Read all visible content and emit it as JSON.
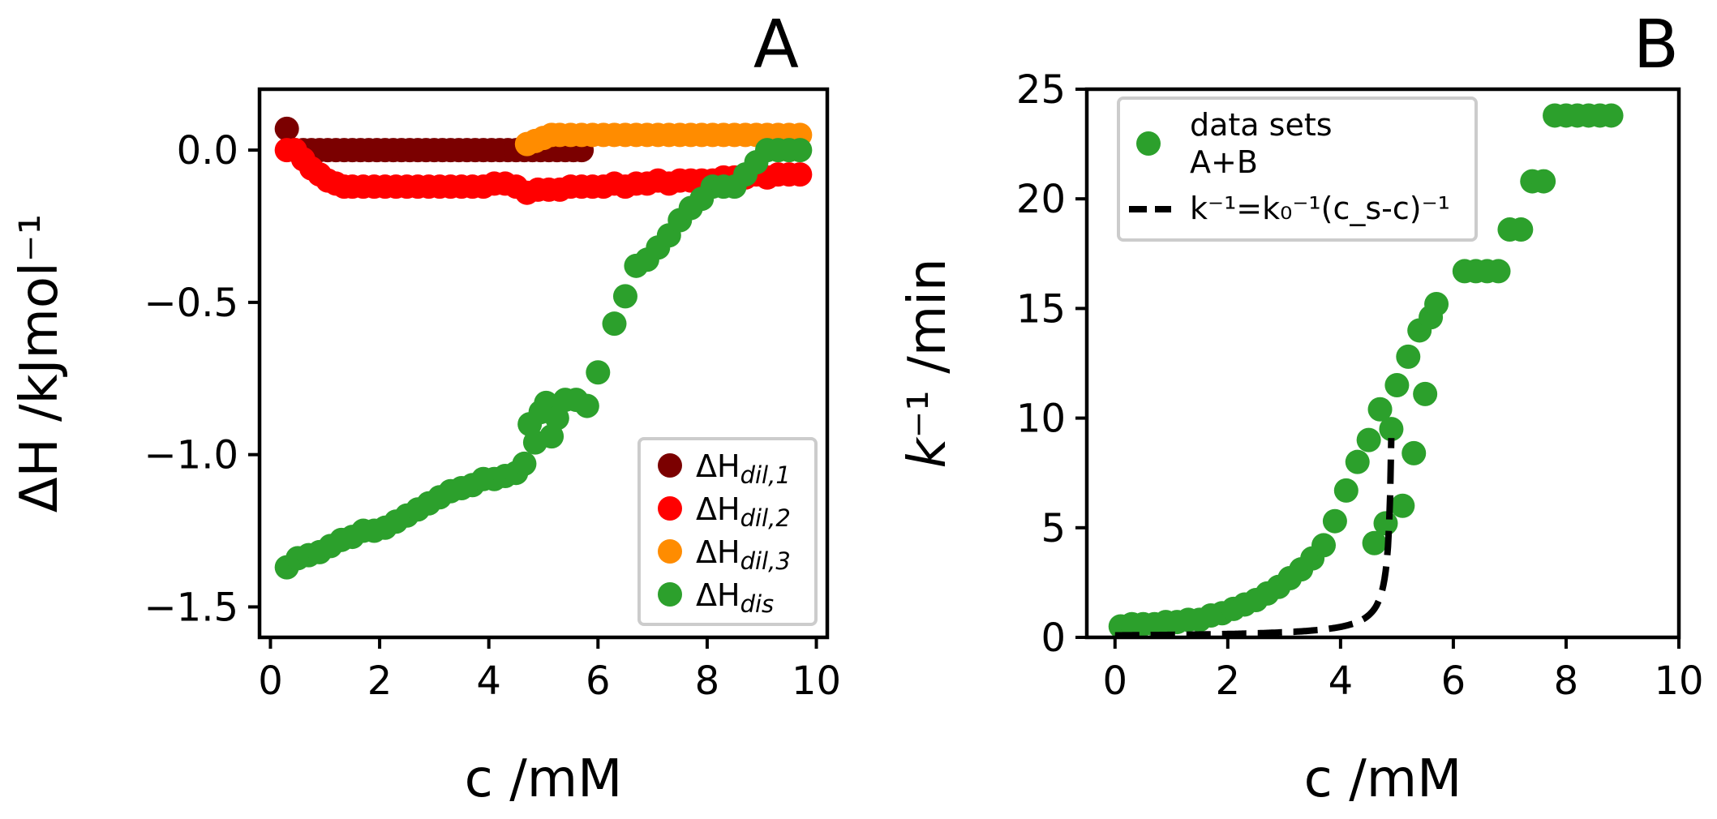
{
  "chart_data": [
    {
      "panel_label": "A",
      "type": "scatter",
      "xlabel": "c /mM",
      "ylabel": "ΔH /kJmol⁻¹",
      "xlim": [
        -0.2,
        10.2
      ],
      "ylim": [
        -1.6,
        0.2
      ],
      "xticks": [
        0,
        2,
        4,
        6,
        8,
        10
      ],
      "yticks": [
        0.0,
        -0.5,
        -1.0,
        -1.5
      ],
      "ytick_labels": [
        "0.0",
        "−0.5",
        "−1.0",
        "−1.5"
      ],
      "grid": false,
      "legend_position": "lower-right",
      "series": [
        {
          "name": "ΔH_dil,1",
          "legend_main": "ΔH",
          "legend_sub": "dil,1",
          "color": "#7b0000",
          "x": [
            0.3,
            0.45,
            0.6,
            0.75,
            0.9,
            1.05,
            1.2,
            1.35,
            1.5,
            1.65,
            1.8,
            1.95,
            2.1,
            2.25,
            2.4,
            2.55,
            2.7,
            2.85,
            3.0,
            3.15,
            3.3,
            3.45,
            3.6,
            3.75,
            3.9,
            4.05,
            4.2,
            4.35,
            4.5,
            4.65,
            4.8,
            4.95,
            5.1,
            5.25,
            5.4,
            5.55,
            5.7
          ],
          "y": [
            0.07,
            0.0,
            0.0,
            0.0,
            0.0,
            0.0,
            0.0,
            0.0,
            0.0,
            0.0,
            0.0,
            0.0,
            0.0,
            0.0,
            0.0,
            0.0,
            0.0,
            0.0,
            0.0,
            0.0,
            0.0,
            0.0,
            0.0,
            0.0,
            0.0,
            0.0,
            0.0,
            0.0,
            0.0,
            0.0,
            0.0,
            0.0,
            0.0,
            0.0,
            0.0,
            0.0,
            0.0
          ]
        },
        {
          "name": "ΔH_dil,2",
          "legend_main": "ΔH",
          "legend_sub": "dil,2",
          "color": "#ff0000",
          "x": [
            0.3,
            0.45,
            0.6,
            0.75,
            0.9,
            1.05,
            1.2,
            1.35,
            1.5,
            1.7,
            1.9,
            2.1,
            2.3,
            2.5,
            2.7,
            2.9,
            3.1,
            3.3,
            3.5,
            3.7,
            3.9,
            4.1,
            4.3,
            4.5,
            4.7,
            4.9,
            5.1,
            5.3,
            5.5,
            5.7,
            5.9,
            6.1,
            6.3,
            6.5,
            6.7,
            6.9,
            7.1,
            7.3,
            7.5,
            7.7,
            7.9,
            8.1,
            8.3,
            8.5,
            8.7,
            8.9,
            9.1,
            9.3,
            9.5,
            9.7
          ],
          "y": [
            0.0,
            0.0,
            -0.03,
            -0.06,
            -0.08,
            -0.1,
            -0.11,
            -0.12,
            -0.12,
            -0.12,
            -0.12,
            -0.12,
            -0.12,
            -0.12,
            -0.12,
            -0.12,
            -0.12,
            -0.12,
            -0.12,
            -0.12,
            -0.12,
            -0.11,
            -0.11,
            -0.12,
            -0.14,
            -0.13,
            -0.13,
            -0.13,
            -0.12,
            -0.12,
            -0.12,
            -0.12,
            -0.11,
            -0.12,
            -0.11,
            -0.11,
            -0.1,
            -0.11,
            -0.1,
            -0.1,
            -0.1,
            -0.1,
            -0.09,
            -0.09,
            -0.09,
            -0.08,
            -0.09,
            -0.08,
            -0.08,
            -0.08
          ]
        },
        {
          "name": "ΔH_dil,3",
          "legend_main": "ΔH",
          "legend_sub": "dil,3",
          "color": "#ff8c00",
          "x": [
            4.7,
            4.85,
            5.0,
            5.15,
            5.3,
            5.5,
            5.7,
            5.9,
            6.1,
            6.3,
            6.5,
            6.7,
            6.9,
            7.1,
            7.3,
            7.5,
            7.7,
            7.9,
            8.1,
            8.3,
            8.5,
            8.7,
            8.9,
            9.1,
            9.3,
            9.5,
            9.7
          ],
          "y": [
            0.02,
            0.03,
            0.04,
            0.05,
            0.05,
            0.05,
            0.05,
            0.05,
            0.05,
            0.05,
            0.05,
            0.05,
            0.05,
            0.05,
            0.05,
            0.05,
            0.05,
            0.05,
            0.05,
            0.05,
            0.05,
            0.05,
            0.05,
            0.05,
            0.05,
            0.05,
            0.05
          ]
        },
        {
          "name": "ΔH_dis",
          "legend_main": "ΔH",
          "legend_sub": "dis",
          "color": "#2ca02c",
          "x": [
            0.3,
            0.5,
            0.7,
            0.9,
            1.1,
            1.3,
            1.5,
            1.7,
            1.9,
            2.1,
            2.3,
            2.5,
            2.7,
            2.9,
            3.1,
            3.3,
            3.5,
            3.7,
            3.9,
            4.1,
            4.3,
            4.5,
            4.65,
            4.75,
            4.85,
            4.95,
            5.05,
            5.15,
            5.25,
            5.4,
            5.6,
            5.8,
            6.0,
            6.3,
            6.5,
            6.7,
            6.9,
            7.1,
            7.3,
            7.5,
            7.7,
            7.9,
            8.1,
            8.3,
            8.5,
            8.7,
            8.9,
            9.1,
            9.3,
            9.5,
            9.7
          ],
          "y": [
            -1.37,
            -1.34,
            -1.33,
            -1.32,
            -1.3,
            -1.28,
            -1.27,
            -1.25,
            -1.25,
            -1.24,
            -1.22,
            -1.2,
            -1.18,
            -1.16,
            -1.14,
            -1.12,
            -1.11,
            -1.1,
            -1.08,
            -1.08,
            -1.07,
            -1.06,
            -1.03,
            -0.9,
            -0.96,
            -0.86,
            -0.83,
            -0.94,
            -0.88,
            -0.82,
            -0.82,
            -0.84,
            -0.73,
            -0.57,
            -0.48,
            -0.38,
            -0.36,
            -0.32,
            -0.28,
            -0.23,
            -0.19,
            -0.16,
            -0.12,
            -0.12,
            -0.12,
            -0.08,
            -0.04,
            0.0,
            0.0,
            0.0,
            0.0
          ]
        }
      ]
    },
    {
      "panel_label": "B",
      "type": "scatter",
      "xlabel": "c /mM",
      "ylabel": "k⁻¹ /min",
      "xlim": [
        -0.5,
        10
      ],
      "ylim": [
        0,
        25
      ],
      "xticks": [
        0,
        2,
        4,
        6,
        8,
        10
      ],
      "yticks": [
        0,
        5,
        10,
        15,
        20,
        25
      ],
      "grid": false,
      "legend_position": "upper-left",
      "series": [
        {
          "name": "data sets A+B",
          "legend_lines": [
            "data sets",
            "A+B"
          ],
          "color": "#2ca02c",
          "x": [
            0.1,
            0.3,
            0.5,
            0.7,
            0.9,
            1.1,
            1.3,
            1.5,
            1.7,
            1.9,
            2.1,
            2.3,
            2.5,
            2.7,
            2.9,
            3.1,
            3.3,
            3.5,
            3.7,
            3.9,
            4.1,
            4.3,
            4.5,
            4.6,
            4.7,
            4.8,
            4.9,
            5.0,
            5.1,
            5.2,
            5.3,
            5.4,
            5.5,
            5.6,
            5.7,
            6.2,
            6.4,
            6.6,
            6.8,
            7.0,
            7.2,
            7.4,
            7.6,
            7.8,
            8.0,
            8.2,
            8.4,
            8.6,
            8.8
          ],
          "y": [
            0.5,
            0.6,
            0.6,
            0.6,
            0.7,
            0.7,
            0.8,
            0.8,
            1.0,
            1.1,
            1.3,
            1.5,
            1.7,
            2.0,
            2.3,
            2.7,
            3.1,
            3.6,
            4.2,
            5.3,
            6.7,
            8.0,
            9.0,
            4.3,
            10.4,
            5.2,
            9.5,
            11.5,
            6.0,
            12.8,
            8.4,
            14.0,
            11.1,
            14.6,
            15.2,
            16.7,
            16.7,
            16.7,
            16.7,
            18.6,
            18.6,
            20.8,
            20.8,
            23.8,
            23.8,
            23.8,
            23.8,
            23.8,
            23.8
          ]
        },
        {
          "name": "k⁻¹=k₀⁻¹(c_s-c)⁻¹",
          "type": "line",
          "dashed": true,
          "color": "#000000",
          "legend_text": "k⁻¹=k₀⁻¹(c_s-c)⁻¹",
          "k0": 2.2,
          "cs": 4.95,
          "x_start": 0.0,
          "x_end": 4.9,
          "ymax": 18
        }
      ]
    }
  ]
}
